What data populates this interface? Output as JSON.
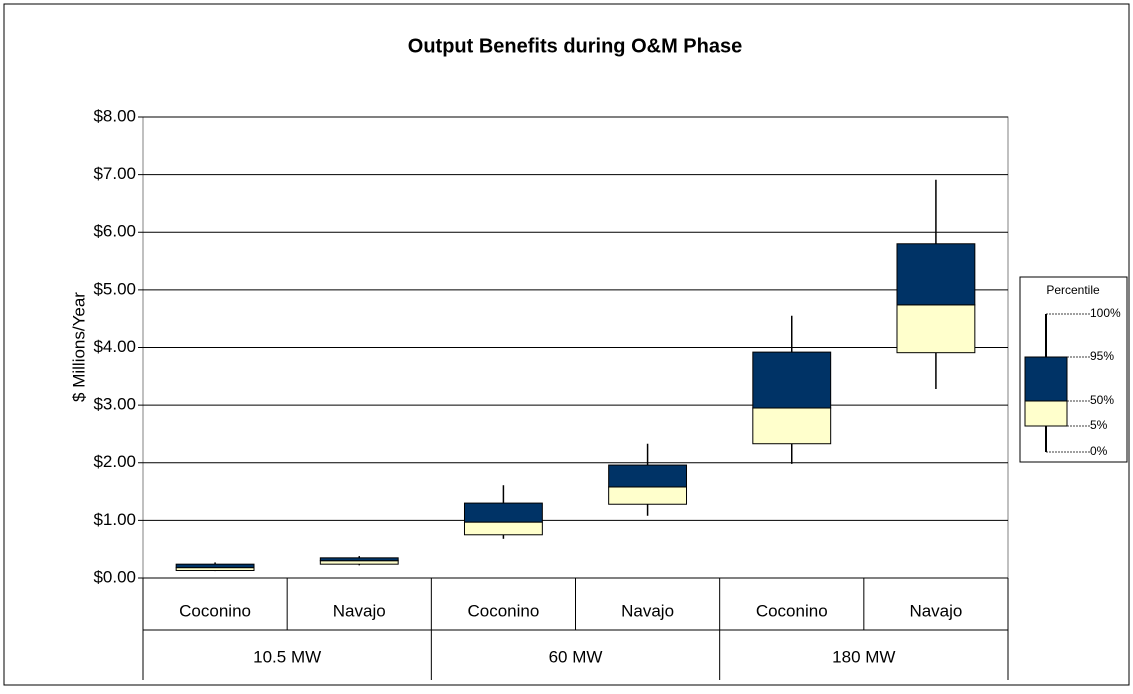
{
  "chart_data": {
    "type": "box",
    "title": "Output Benefits during O&M Phase",
    "y_label": "$ Millions/Year",
    "groups": [
      {
        "name": "10.5 MW",
        "categories": [
          "Coconino",
          "Navajo"
        ]
      },
      {
        "name": "60 MW",
        "categories": [
          "Coconino",
          "Navajo"
        ]
      },
      {
        "name": "180 MW",
        "categories": [
          "Coconino",
          "Navajo"
        ]
      }
    ],
    "min": [
      0.12,
      0.22,
      0.68,
      1.08,
      1.98,
      3.28
    ],
    "p5": [
      0.13,
      0.24,
      0.75,
      1.28,
      2.33,
      3.91
    ],
    "median": [
      0.18,
      0.3,
      0.97,
      1.58,
      2.95,
      4.74
    ],
    "p95": [
      0.24,
      0.35,
      1.3,
      1.96,
      3.92,
      5.8
    ],
    "max": [
      0.27,
      0.38,
      1.61,
      2.33,
      4.55,
      6.91
    ],
    "upper_color": "#003366",
    "lower_color": "#ffffcc",
    "ylim": [
      0,
      8
    ],
    "yticks": [
      {
        "value": 0,
        "label": "$0.00"
      },
      {
        "value": 1,
        "label": "$1.00"
      },
      {
        "value": 2,
        "label": "$2.00"
      },
      {
        "value": 3,
        "label": "$3.00"
      },
      {
        "value": 4,
        "label": "$4.00"
      },
      {
        "value": 5,
        "label": "$5.00"
      },
      {
        "value": 6,
        "label": "$6.00"
      },
      {
        "value": 7,
        "label": "$7.00"
      },
      {
        "value": 8,
        "label": "$8.00"
      }
    ],
    "grid": true,
    "legend": {
      "title": "Percentile",
      "labels": [
        "100%",
        "95%",
        "50%",
        "5%",
        "0%"
      ]
    }
  }
}
